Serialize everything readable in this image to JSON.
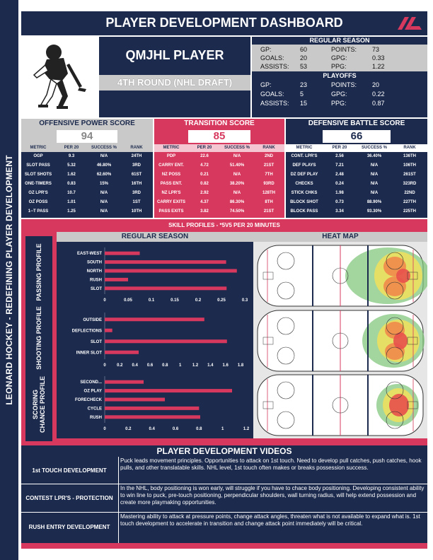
{
  "dashboard_title": "PLAYER DEVELOPMENT DASHBOARD",
  "sidebar_label": "LEONARD HOCKEY - REDEFINING PLAYER DEVELOPMENT",
  "player": {
    "league": "QMJHL PLAYER",
    "draft": "4TH ROUND (NHL DRAFT)"
  },
  "regular_season": {
    "title": "REGULAR SEASON",
    "gp_label": "GP:",
    "gp": "60",
    "points_label": "POINTS:",
    "points": "73",
    "goals_label": "GOALS:",
    "goals": "20",
    "gpg_label": "GPG:",
    "gpg": "0.33",
    "assists_label": "ASSISTS:",
    "assists": "53",
    "ppg_label": "PPG:",
    "ppg": "1.22"
  },
  "playoffs": {
    "title": "PLAYOFFS",
    "gp_label": "GP:",
    "gp": "23",
    "points_label": "POINTS:",
    "points": "20",
    "goals_label": "GOALS:",
    "goals": "5",
    "gpg_label": "GPG:",
    "gpg": "0.22",
    "assists_label": "ASSISTS:",
    "assists": "15",
    "ppg_label": "PPG:",
    "ppg": "0.87"
  },
  "scores": {
    "offensive": {
      "title": "OFFENSIVE POWER SCORE",
      "value": "94",
      "headers": [
        "METRIC",
        "PER 20",
        "SUCCESS %",
        "RANK"
      ],
      "rows": [
        [
          "OGP",
          "9.3",
          "N/A",
          "24TH"
        ],
        [
          "SLOT PASS",
          "5.32",
          "46.80%",
          "3RD"
        ],
        [
          "SLOT SHOTS",
          "1.62",
          "62.60%",
          "61ST"
        ],
        [
          "ONE-TIMERS",
          "0.83",
          "15%",
          "16TH"
        ],
        [
          "OZ LPR'S",
          "10.7",
          "N/A",
          "3RD"
        ],
        [
          "OZ POSS",
          "1.01",
          "N/A",
          "1ST"
        ],
        [
          "1--T PASS",
          "1.25",
          "N/A",
          "10TH"
        ]
      ]
    },
    "transition": {
      "title": "TRANSITION SCORE",
      "value": "85",
      "headers": [
        "METRIC",
        "PER 20",
        "SUCCESS %",
        "RANK"
      ],
      "rows": [
        [
          "PDP",
          "22.6",
          "N/A",
          "2ND"
        ],
        [
          "CARRY ENT.",
          "4.72",
          "51.40%",
          "21ST"
        ],
        [
          "NZ POSS",
          "0.21",
          "N/A",
          "7TH"
        ],
        [
          "PASS ENT.",
          "0.82",
          "38.20%",
          "93RD"
        ],
        [
          "NZ LPR'S",
          "2.92",
          "N/A",
          "128TH"
        ],
        [
          "CARRY EXITS",
          "4.37",
          "86.30%",
          "8TH"
        ],
        [
          "PASS EXITS",
          "3.82",
          "74.50%",
          "21ST"
        ]
      ]
    },
    "defensive": {
      "title": "DEFENSIVE BATTLE SCORE",
      "value": "66",
      "headers": [
        "METRIC",
        "PER 20",
        "SUCCESS %",
        "RANK"
      ],
      "rows": [
        [
          "CONT. LPR'S",
          "2.56",
          "36.40%",
          "136TH"
        ],
        [
          "DEF PLAYS",
          "7.21",
          "N/A",
          "106TH"
        ],
        [
          "DZ DEF PLAY",
          "2.48",
          "N/A",
          "261ST"
        ],
        [
          "CHECKS",
          "0.24",
          "N/A",
          "323RD"
        ],
        [
          "STICK CHKS",
          "1.98",
          "N/A",
          "22ND"
        ],
        [
          "BLOCK SHOT",
          "0.73",
          "88.90%",
          "227TH"
        ],
        [
          "BLOCK PASS",
          "3.34",
          "93.30%",
          "225TH"
        ]
      ]
    }
  },
  "skill_profiles": {
    "title": "SKILL PROFILES - *5V5 PER 20 MINUTES",
    "regular_season_label": "REGULAR SEASON",
    "heat_map_label": "HEAT MAP",
    "passing_label": "PASSING PROFILE",
    "shooting_label": "SHOOTING PROFILE",
    "scoring_label": "SCORING CHANCE PROFILE"
  },
  "chart_data": [
    {
      "type": "bar",
      "title": "PASSING PROFILE",
      "categories": [
        "EAST-WEST",
        "SOUTH",
        "NORTH",
        "RUSH",
        "SLOT"
      ],
      "values": [
        0.075,
        0.26,
        0.283,
        0.05,
        0.261
      ],
      "xlim": [
        0,
        0.3
      ],
      "ticks": [
        "0",
        "0.05",
        "0.1",
        "0.15",
        "0.2",
        "0.25",
        "0.3"
      ],
      "tick_values": [
        0,
        0.05,
        0.1,
        0.15,
        0.2,
        0.25,
        0.3
      ]
    },
    {
      "type": "bar",
      "title": "SHOOTING PROFILE",
      "categories": [
        "OUTSIDE",
        "DEFLECTIONS",
        "SLOT",
        "INNER SLOT"
      ],
      "values": [
        1.32,
        0.1,
        1.62,
        0.45
      ],
      "xlim": [
        0,
        1.8
      ],
      "ticks": [
        "0",
        "0.2",
        "0.4",
        "0.6",
        "0.8",
        "1",
        "1.2",
        "1.4",
        "1.6",
        "1.8"
      ],
      "tick_values": [
        0,
        0.2,
        0.4,
        0.6,
        0.8,
        1,
        1.2,
        1.4,
        1.6,
        1.8
      ]
    },
    {
      "type": "bar",
      "title": "SCORING CHANCE PROFILE",
      "categories": [
        "SECOND...",
        "OZ PLAY",
        "FORECHECK",
        "CYCLE",
        "RUSH"
      ],
      "values": [
        0.33,
        1.08,
        0.51,
        0.8,
        0.81
      ],
      "xlim": [
        0,
        1.2
      ],
      "ticks": [
        "0",
        "0.2",
        "0.4",
        "0.6",
        "0.8",
        "1",
        "1.2"
      ],
      "tick_values": [
        0,
        0.2,
        0.4,
        0.6,
        0.8,
        1,
        1.2
      ]
    }
  ],
  "videos": {
    "title": "PLAYER DEVELOPMENT VIDEOS",
    "items": [
      {
        "label": "1st TOUCH DEVELOPMENT",
        "text": "Puck leads movement principles. Opportunities to attack on 1st touch. Need to develop pull catches, push catches, hook pulls, and other translatable skills. NHL level, 1st touch often makes or breaks possession success."
      },
      {
        "label": "CONTEST LPR'S - PROTECTION",
        "text": "In the NHL, body positioning is won early, will struggle if you have to chace body positioning. Developing consistent ability to win line to puck, pre-touch positioning, perpendicular shoulders, wall turning radius, will help extend possession and create more playmaking opportunities."
      },
      {
        "label": "RUSH ENTRY DEVELOPMENT",
        "text": "Mastering ability to attack at pressure points, change attack angles, threaten what is not available to expand what is. 1st touch development to accelerate in transition and change attack point immediately will be critical."
      }
    ]
  },
  "colors": {
    "navy": "#1c2a4d",
    "pink": "#d7395e",
    "grey": "#c9c9c9"
  }
}
